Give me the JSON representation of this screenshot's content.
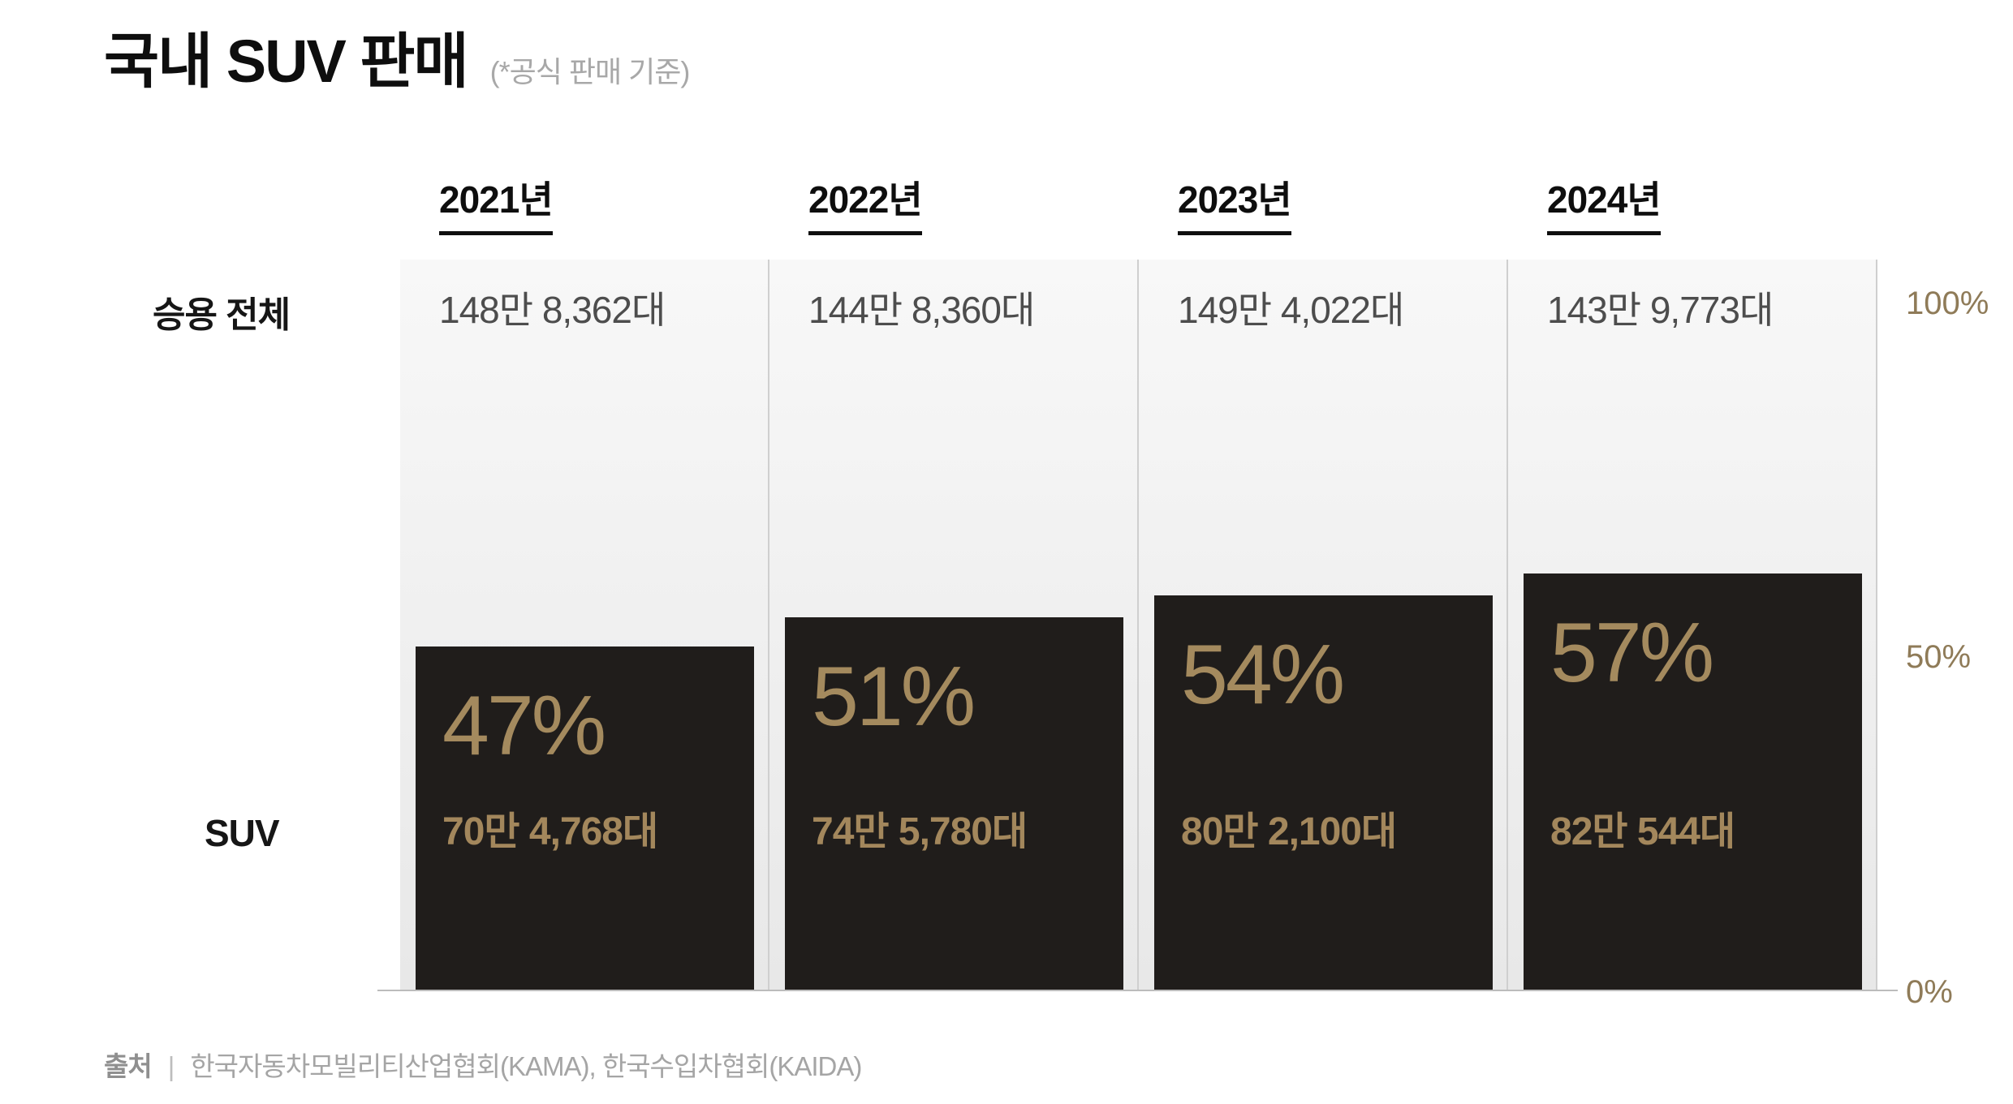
{
  "title": "국내 SUV 판매",
  "subtitle": "(*공식 판매 기준)",
  "rows": {
    "total_label": "승용 전체",
    "suv_label": "SUV"
  },
  "axis": {
    "ticks": [
      "100%",
      "50%",
      "0%"
    ]
  },
  "columns": [
    {
      "year": "2021년",
      "total": "148만 8,362대",
      "share": "47%",
      "share_pct": 47,
      "suv": "70만 4,768대"
    },
    {
      "year": "2022년",
      "total": "144만 8,360대",
      "share": "51%",
      "share_pct": 51,
      "suv": "74만 5,780대"
    },
    {
      "year": "2023년",
      "total": "149만 4,022대",
      "share": "54%",
      "share_pct": 54,
      "suv": "80만 2,100대"
    },
    {
      "year": "2024년",
      "total": "143만 9,773대",
      "share": "57%",
      "share_pct": 57,
      "suv": "82만 544대"
    }
  ],
  "source": {
    "label": "출처",
    "divider": "|",
    "text": "한국자동차모빌리티산업협회(KAMA), 한국수입차협회(KAIDA)"
  },
  "colors": {
    "bar": "#201d1b",
    "bar_pct_text": "#a48a5e",
    "bar_value_text": "#a3875c",
    "axis_text": "#8f7b58",
    "total_value_text": "#4d4d4d",
    "title_text": "#0e0e0e",
    "muted_gray": "#a8a8a8",
    "column_bg_top": "#f8f8f8",
    "column_bg_bottom": "#e8e8e8",
    "separator": "#cfcfcf",
    "baseline": "#bcbcbc"
  },
  "chart_data": {
    "type": "bar",
    "title": "국내 SUV 판매 (*공식 판매 기준)",
    "categories": [
      "2021년",
      "2022년",
      "2023년",
      "2024년"
    ],
    "series": [
      {
        "name": "승용 전체",
        "unit": "대",
        "values": [
          1488362,
          1448360,
          1494022,
          1439773
        ],
        "labels": [
          "148만 8,362대",
          "144만 8,360대",
          "149만 4,022대",
          "143만 9,773대"
        ]
      },
      {
        "name": "SUV",
        "unit": "대",
        "values": [
          704768,
          745780,
          802100,
          820544
        ],
        "labels": [
          "70만 4,768대",
          "74만 5,780대",
          "80만 2,100대",
          "82만 544대"
        ],
        "share_pct": [
          47,
          51,
          54,
          57
        ],
        "share_labels": [
          "47%",
          "51%",
          "54%",
          "57%"
        ]
      }
    ],
    "xlabel": "",
    "ylabel": "",
    "ylim": [
      0,
      100
    ],
    "yticks": [
      "0%",
      "50%",
      "100%"
    ],
    "ytick_side": "right",
    "legend": "none",
    "grid": false,
    "source": "한국자동차모빌리티산업협회(KAMA), 한국수입차협회(KAIDA)"
  }
}
